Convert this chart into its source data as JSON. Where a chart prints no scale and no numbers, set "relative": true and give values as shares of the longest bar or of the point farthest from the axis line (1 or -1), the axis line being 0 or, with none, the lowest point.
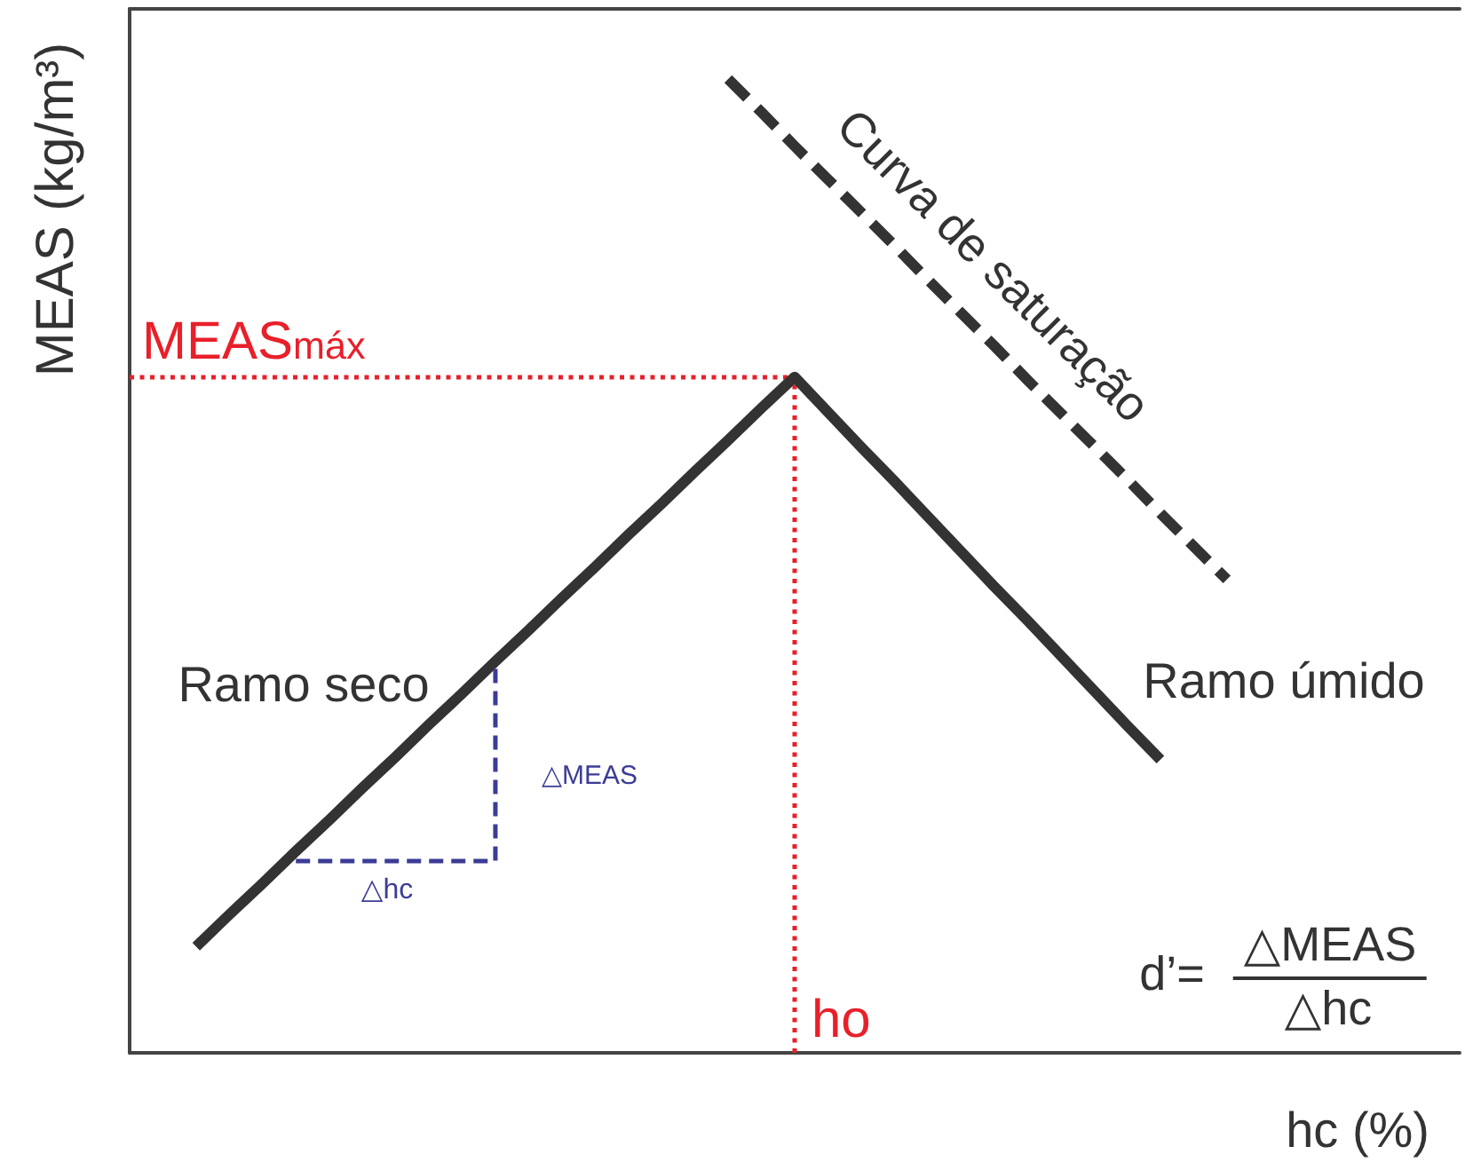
{
  "chart_data": {
    "type": "line",
    "relative": true,
    "xlabel": "hc (%)",
    "ylabel": "MEAS (kg/m³)",
    "categories": [
      null,
      null,
      null,
      null,
      null,
      null,
      null,
      null,
      null,
      null,
      null,
      null,
      null,
      null,
      null,
      null,
      null,
      null,
      null,
      null,
      null,
      null,
      null,
      null,
      null,
      null,
      null,
      null,
      null,
      null,
      null,
      null,
      null,
      null,
      null,
      null,
      null,
      null,
      null,
      null,
      null
    ],
    "series": [
      {
        "color": "#333333",
        "values": [
          null,
          null,
          0.109,
          0.142,
          0.174,
          0.207,
          0.239,
          0.272,
          0.304,
          0.337,
          0.369,
          0.402,
          0.434,
          0.467,
          0.499,
          0.532,
          0.564,
          0.597,
          0.629,
          0.662,
          0.694,
          0.658,
          0.622,
          0.587,
          0.551,
          0.515,
          0.479,
          0.444,
          0.408,
          0.372,
          0.336,
          0.301,
          null,
          null,
          null,
          null,
          null,
          null,
          null,
          null,
          null
        ]
      },
      {
        "name": "Curva de saturação",
        "color": "#333333",
        "line_style": "dashed",
        "values": [
          null,
          null,
          null,
          null,
          null,
          null,
          null,
          null,
          null,
          null,
          null,
          null,
          null,
          null,
          null,
          null,
          null,
          null,
          1,
          0.966,
          0.931,
          0.897,
          0.863,
          0.829,
          0.794,
          0.76,
          0.726,
          0.691,
          0.657,
          0.623,
          0.589,
          0.554,
          0.52,
          0.486,
          null,
          null,
          null,
          null,
          null,
          null,
          null
        ]
      },
      {
        "type": "step",
        "color": "#3c3c96",
        "line_style": "dashed",
        "values": [
          null,
          null,
          null,
          null,
          null,
          0.197,
          0.197,
          0.197,
          0.197,
          0.197,
          0.197,
          0.402,
          null,
          null,
          null,
          null,
          null,
          null,
          null,
          null,
          null,
          null,
          null,
          null,
          null,
          null,
          null,
          null,
          null,
          null,
          null,
          null,
          null,
          null,
          null,
          null,
          null,
          null,
          null,
          null,
          null
        ]
      }
    ],
    "ref_lines": [
      {
        "axis": "y",
        "value": 0.694,
        "label": "MEAS$_{máx}$",
        "color": "#e8202a",
        "line_style": "dotted"
      }
    ],
    "annotations": [
      "Ramo seco",
      "Ramo úmido",
      "△MEAS",
      "△hc",
      "d’=",
      "△MEAS",
      "△hc",
      "ho"
    ]
  }
}
